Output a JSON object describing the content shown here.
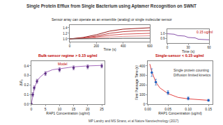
{
  "slide": {
    "title": "Single Protein Efflux from Single Bacterium using Aptamer Recognition on SWNT",
    "subtitle": "Sensor array can operate as an ensemble (analog) or single molecular sensor",
    "footer": "MP Landry and MS Strano, et al Nature Nanotechnology (2017)"
  },
  "chart_data": [
    {
      "type": "line",
      "xlabel": "Time (s)",
      "x": [
        0,
        100,
        200,
        300,
        400,
        500,
        600
      ],
      "series": [
        {
          "color": "#8b0000",
          "type": "line",
          "values": [
            1.0,
            1.05,
            1.15,
            1.28,
            1.35,
            1.38,
            1.4
          ]
        },
        {
          "color": "#b22222",
          "type": "line",
          "values": [
            1.0,
            1.03,
            1.1,
            1.2,
            1.26,
            1.29,
            1.3
          ]
        },
        {
          "color": "#d04040",
          "type": "line",
          "values": [
            1.0,
            1.02,
            1.07,
            1.13,
            1.17,
            1.19,
            1.2
          ]
        },
        {
          "color": "#e08080",
          "type": "line",
          "values": [
            1.0,
            1.01,
            1.04,
            1.07,
            1.09,
            1.1,
            1.11
          ]
        },
        {
          "color": "#404040",
          "type": "line",
          "values": [
            1.0,
            1.0,
            1.01,
            1.01,
            1.02,
            1.02,
            1.02
          ]
        }
      ],
      "xlim": [
        0,
        600
      ],
      "xticks": [
        0,
        200,
        400,
        600
      ],
      "ylim": [
        0.9,
        1.5
      ],
      "yticks": [
        {
          "value": 1,
          "label": "1.0"
        },
        {
          "value": 1.2,
          "label": "1.2"
        },
        {
          "value": 1.4,
          "label": "1.4"
        }
      ],
      "grid": false
    },
    {
      "type": "line",
      "xlabel": "Time (s)",
      "x": [
        0,
        5,
        10,
        15,
        20,
        25,
        30,
        35,
        40,
        45,
        50,
        55,
        60
      ],
      "series": [
        {
          "color": "#7b3fa0",
          "type": "line",
          "values": [
            1.0,
            1.0,
            0.99,
            0.96,
            0.96,
            0.95,
            0.92,
            0.92,
            0.91,
            0.88,
            0.88,
            0.87,
            0.87
          ]
        }
      ],
      "xlim": [
        0,
        60
      ],
      "xticks": [
        0,
        30,
        60
      ],
      "ylim": [
        0.8,
        1.1
      ],
      "yticks": [
        {
          "value": 0.9,
          "label": "0.9"
        },
        {
          "value": 1,
          "label": "1.0"
        }
      ],
      "annotations": [
        {
          "text": "0.15 ug/ml",
          "x": 40,
          "y": 1.04,
          "color": "#c00000"
        }
      ],
      "grid": false
    },
    {
      "type": "scatter",
      "title": "Bulk-sensor regime > 0.15 ug/ml",
      "xlabel": "RAP1 Concentration (ug/ml)",
      "ylabel": "ΔI/I₀",
      "series": [
        {
          "type": "line",
          "color": "#9b59b6",
          "line_style": "solid",
          "x": [
            0,
            1,
            2,
            3,
            5,
            7.5,
            10,
            15,
            20,
            25
          ],
          "values": [
            0,
            0.16,
            0.24,
            0.28,
            0.33,
            0.36,
            0.37,
            0.39,
            0.4,
            0.405
          ]
        },
        {
          "type": "scatter",
          "color": "#5b2c83",
          "marker": "circle",
          "x": [
            0,
            0.5,
            1,
            2,
            5,
            10,
            15,
            20,
            25
          ],
          "values": [
            0,
            0.1,
            0.17,
            0.24,
            0.32,
            0.36,
            0.38,
            0.39,
            0.4
          ],
          "error": [
            0.01,
            0.02,
            0.02,
            0.02,
            0.02,
            0.02,
            0.02,
            0.02,
            0.02
          ]
        }
      ],
      "xlim": [
        0,
        26
      ],
      "xticks": [
        0,
        5,
        10,
        15,
        20,
        25
      ],
      "ylim": [
        0,
        0.45
      ],
      "yticks": [
        {
          "value": 0,
          "label": "0.0"
        },
        0.1,
        0.2,
        0.3,
        0.4
      ],
      "annotations": [
        {
          "text": "Model",
          "x": 9,
          "y": 0.42,
          "color": "#c00000"
        }
      ],
      "grid": false
    },
    {
      "type": "scatter",
      "title": "Single-sensor < 0.15 ug/ml",
      "xlabel": "RAP1 Concentration (ug/ml)",
      "ylabel": "First Passage Time (s)",
      "series": [
        {
          "type": "line",
          "color": "#e03030",
          "line_style": "solid",
          "x": [
            0.005,
            0.01,
            0.02,
            0.03,
            0.05,
            0.075,
            0.1,
            0.125,
            0.15
          ],
          "values": [
            420,
            340,
            230,
            170,
            110,
            70,
            55,
            45,
            40
          ]
        },
        {
          "type": "scatter",
          "color": "#2060c0",
          "marker": "circle",
          "x": [
            0.01,
            0.02,
            0.05,
            0.1,
            0.15
          ],
          "values": [
            330,
            230,
            120,
            60,
            40
          ],
          "error": [
            40,
            30,
            20,
            15,
            10
          ]
        }
      ],
      "xlim": [
        0,
        0.16
      ],
      "xticks": [
        {
          "value": 0,
          "label": "0.00"
        },
        0.05,
        {
          "value": 0.1,
          "label": "0.10"
        },
        0.15
      ],
      "ylim": [
        0,
        450
      ],
      "yticks": [
        0,
        100,
        200,
        300,
        400
      ],
      "annotations": [
        {
          "lines": [
            "Single protein counting",
            "Diffusion limited kinetics"
          ],
          "x": 0.06,
          "y": 330,
          "color": "#333333"
        }
      ],
      "grid": false
    }
  ]
}
